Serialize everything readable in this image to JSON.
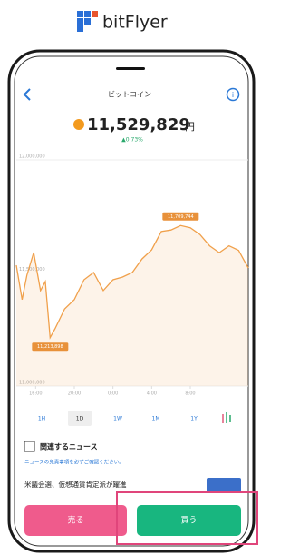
{
  "header": {
    "logo_text": "bitFlyer"
  },
  "nav": {
    "title": "ビットコイン"
  },
  "price": {
    "value": "11,529,829",
    "unit": "円",
    "change": "▲0.73%"
  },
  "chart_data": {
    "type": "line",
    "x": [
      14,
      14.6,
      15.1,
      15.8,
      16.5,
      17,
      17.5,
      18,
      19,
      20,
      21,
      22,
      23,
      24,
      25,
      26,
      27,
      28,
      29,
      30,
      31,
      32,
      33,
      34,
      35,
      36,
      37,
      37.5,
      38
    ],
    "series": [
      {
        "color": "#f0a04b",
        "values": [
          11534000,
          11382000,
          11490000,
          11590000,
          11422000,
          11462000,
          11213898,
          11253000,
          11341000,
          11382000,
          11470000,
          11502000,
          11422000,
          11470000,
          11482000,
          11502000,
          11562000,
          11602000,
          11683000,
          11690000,
          11709744,
          11700000,
          11670000,
          11620000,
          11590000,
          11620000,
          11600000,
          11560000,
          11522000
        ]
      }
    ],
    "xlim": [
      14,
      38
    ],
    "xticks": [
      {
        "value": 16,
        "label": "16:00"
      },
      {
        "value": 20,
        "label": "20:00"
      },
      {
        "value": 24,
        "label": "0:00"
      },
      {
        "value": 28,
        "label": "4:00"
      },
      {
        "value": 32,
        "label": "8:00"
      }
    ],
    "ylim": [
      11000000,
      12000000
    ],
    "yticks": [
      {
        "value": 11000000,
        "label": "11,000,000"
      },
      {
        "value": 11500000,
        "label": "11,500,000"
      },
      {
        "value": 12000000,
        "label": "12,000,000"
      }
    ],
    "grid": true,
    "annotations": [
      {
        "x": 31,
        "y": 11709744,
        "label": "11,709,744"
      },
      {
        "x": 17.5,
        "y": 11213898,
        "label": "11,213,898"
      }
    ]
  },
  "range_buttons": [
    "1H",
    "1D",
    "1W",
    "1M",
    "1Y"
  ],
  "selected_range": "1D",
  "news": {
    "title": "関連するニュース",
    "disclaimer": "ニュースの免責事項を必ずご確認ください。",
    "headline": "米議会選、仮想通貨肯定派が躍進"
  },
  "actions": {
    "sell": "売る",
    "buy": "買う"
  }
}
